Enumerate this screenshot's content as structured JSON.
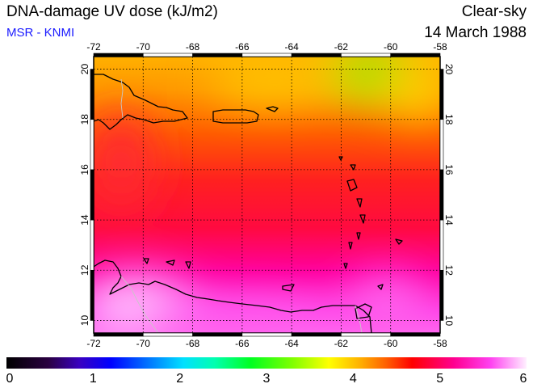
{
  "header": {
    "title": "DNA-damage UV dose (kJ/m2)",
    "source": "MSR - KNMI",
    "condition": "Clear-sky",
    "date": "14 March 1988"
  },
  "map": {
    "lon_range": [
      -72,
      -58
    ],
    "lat_range": [
      9.5,
      20.5
    ],
    "lon_ticks": [
      -72,
      -70,
      -68,
      -66,
      -64,
      -62,
      -60,
      -58
    ],
    "lat_ticks": [
      10,
      12,
      14,
      16,
      18,
      20
    ],
    "grid": "dotted"
  },
  "colorbar": {
    "range": [
      0,
      6
    ],
    "ticks": [
      0,
      1,
      2,
      3,
      4,
      5,
      6
    ],
    "tick_labels": [
      "0",
      "1",
      "2",
      "3",
      "4",
      "5",
      "6"
    ]
  },
  "colors": {
    "title": "#000000",
    "source": "#1a1aff",
    "coast": "#000000",
    "border": "#c8c8c8"
  }
}
